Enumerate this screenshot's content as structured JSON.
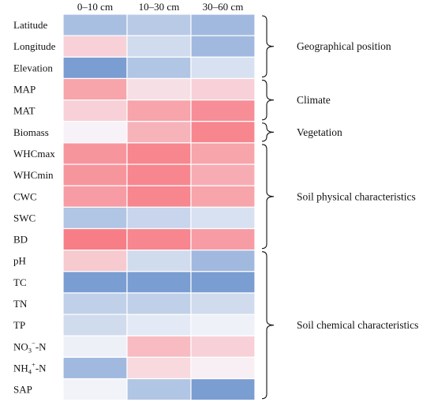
{
  "chart_data": {
    "type": "heatmap",
    "columns": [
      "0–10 cm",
      "10–30 cm",
      "30–60 cm"
    ],
    "rows": [
      {
        "label": "Latitude",
        "values": [
          -0.5,
          -0.4,
          -0.55
        ]
      },
      {
        "label": "Longitude",
        "values": [
          0.25,
          -0.25,
          -0.55
        ]
      },
      {
        "label": "Elevation",
        "values": [
          -0.8,
          -0.45,
          -0.2
        ]
      },
      {
        "label": "MAP",
        "values": [
          0.55,
          0.15,
          0.25
        ]
      },
      {
        "label": "MAT",
        "values": [
          0.25,
          0.55,
          0.7
        ]
      },
      {
        "label": "Biomass",
        "values": [
          0.03,
          0.45,
          0.75
        ]
      },
      {
        "label": "WHCmax",
        "values": [
          0.65,
          0.75,
          0.55
        ]
      },
      {
        "label": "WHCmin",
        "values": [
          0.65,
          0.75,
          0.5
        ]
      },
      {
        "label": "CWC",
        "values": [
          0.6,
          0.75,
          0.55
        ]
      },
      {
        "label": "SWC",
        "values": [
          -0.45,
          -0.3,
          -0.2
        ]
      },
      {
        "label": "BD",
        "values": [
          0.8,
          0.75,
          0.6
        ]
      },
      {
        "label": "pH",
        "values": [
          0.3,
          -0.25,
          -0.55
        ]
      },
      {
        "label": "TC",
        "values": [
          -0.8,
          -0.8,
          -0.8
        ]
      },
      {
        "label": "TN",
        "values": [
          -0.35,
          -0.35,
          -0.25
        ]
      },
      {
        "label": "TP",
        "values": [
          -0.25,
          -0.12,
          -0.05
        ]
      },
      {
        "label": "NO3−-N",
        "label_base": "NO",
        "label_sub": "3",
        "label_sup": "−",
        "label_tail": "-N",
        "values": [
          -0.06,
          0.4,
          0.25
        ]
      },
      {
        "label": "NH4+-N",
        "label_base": "NH",
        "label_sub": "4",
        "label_sup": "+",
        "label_tail": "-N",
        "values": [
          -0.55,
          0.2,
          0.05
        ]
      },
      {
        "label": "SAP",
        "values": [
          -0.04,
          -0.45,
          -0.8
        ]
      }
    ],
    "groups": [
      {
        "label": "Geographical position",
        "start_row": 0,
        "end_row": 2
      },
      {
        "label": "Climate",
        "start_row": 3,
        "end_row": 4
      },
      {
        "label": "Vegetation",
        "start_row": 5,
        "end_row": 5
      },
      {
        "label": "Soil physical characteristics",
        "start_row": 6,
        "end_row": 10
      },
      {
        "label": "Soil chemical characteristics",
        "start_row": 11,
        "end_row": 17
      }
    ],
    "colors": {
      "negative": "#5b87c8",
      "neutral": "#f7f7fb",
      "positive": "#f7606a"
    },
    "legend": "none"
  }
}
